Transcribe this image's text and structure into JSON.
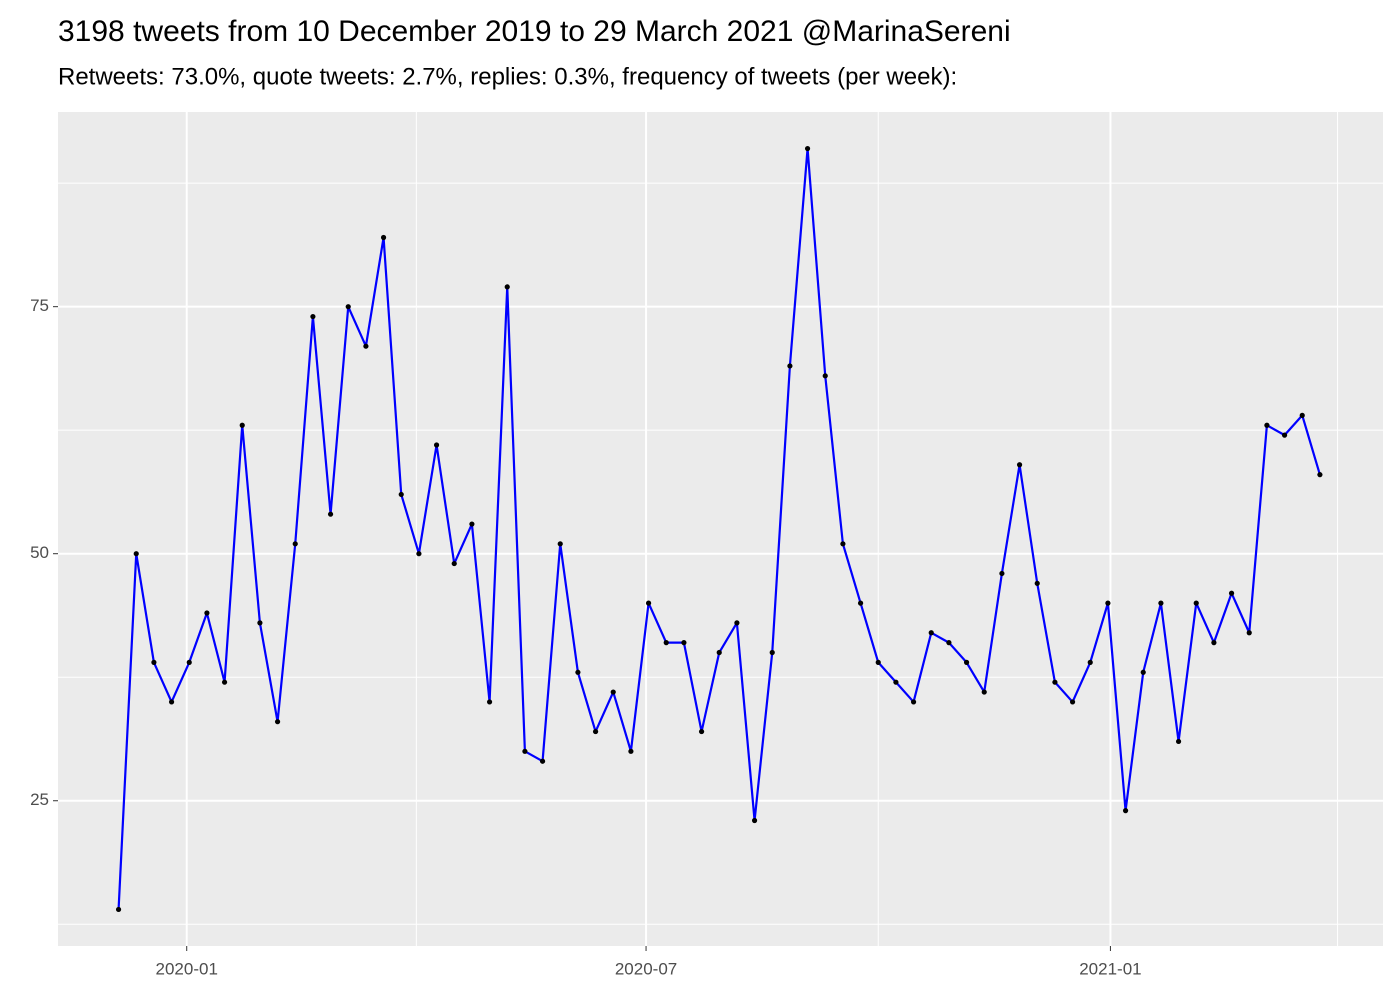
{
  "chart_data": {
    "type": "line",
    "title": "3198 tweets from 10 December 2019 to 29 March 2021 @MarinaSereni",
    "subtitle": "Retweets: 73.0%, quote tweets: 2.7%, replies: 0.3%, frequency of tweets (per week):",
    "x": [
      "2019-12-05",
      "2019-12-12",
      "2019-12-19",
      "2019-12-26",
      "2020-01-02",
      "2020-01-09",
      "2020-01-16",
      "2020-01-23",
      "2020-01-30",
      "2020-02-06",
      "2020-02-13",
      "2020-02-20",
      "2020-02-27",
      "2020-03-05",
      "2020-03-12",
      "2020-03-19",
      "2020-03-26",
      "2020-04-02",
      "2020-04-09",
      "2020-04-16",
      "2020-04-23",
      "2020-04-30",
      "2020-05-07",
      "2020-05-14",
      "2020-05-21",
      "2020-05-28",
      "2020-06-04",
      "2020-06-11",
      "2020-06-18",
      "2020-06-25",
      "2020-07-02",
      "2020-07-09",
      "2020-07-16",
      "2020-07-23",
      "2020-07-30",
      "2020-08-06",
      "2020-08-13",
      "2020-08-20",
      "2020-08-27",
      "2020-09-03",
      "2020-09-10",
      "2020-09-17",
      "2020-09-24",
      "2020-10-01",
      "2020-10-08",
      "2020-10-15",
      "2020-10-22",
      "2020-10-29",
      "2020-11-05",
      "2020-11-12",
      "2020-11-19",
      "2020-11-26",
      "2020-12-03",
      "2020-12-10",
      "2020-12-17",
      "2020-12-24",
      "2020-12-31",
      "2021-01-07",
      "2021-01-14",
      "2021-01-21",
      "2021-01-28",
      "2021-02-04",
      "2021-02-11",
      "2021-02-18",
      "2021-02-25",
      "2021-03-04",
      "2021-03-11",
      "2021-03-18",
      "2021-03-25"
    ],
    "values": [
      14,
      50,
      39,
      35,
      39,
      44,
      37,
      63,
      43,
      33,
      51,
      74,
      54,
      75,
      71,
      82,
      56,
      50,
      61,
      49,
      53,
      35,
      77,
      30,
      29,
      51,
      38,
      32,
      36,
      30,
      45,
      41,
      41,
      32,
      40,
      43,
      23,
      40,
      69,
      91,
      68,
      51,
      45,
      39,
      37,
      35,
      42,
      41,
      39,
      36,
      48,
      59,
      47,
      37,
      35,
      39,
      45,
      24,
      38,
      45,
      31,
      45,
      41,
      46,
      42,
      63,
      62,
      64,
      58
    ],
    "color": "#0000ff",
    "point_color": "#000000",
    "xlim": [
      "2019-11-11",
      "2021-04-19"
    ],
    "xticks": [
      {
        "value": "2020-01-01",
        "label": "2020-01"
      },
      {
        "value": "2020-07-01",
        "label": "2020-07"
      },
      {
        "value": "2021-01-01",
        "label": "2021-01"
      }
    ],
    "xminorticks": [
      "2020-04-01",
      "2020-10-01",
      "2021-04-01"
    ],
    "ylim": [
      10.3,
      94.7
    ],
    "yticks": [
      25,
      50,
      75
    ],
    "yminorticks": [
      12.5,
      37.5,
      62.5,
      87.5
    ],
    "grid": true
  }
}
